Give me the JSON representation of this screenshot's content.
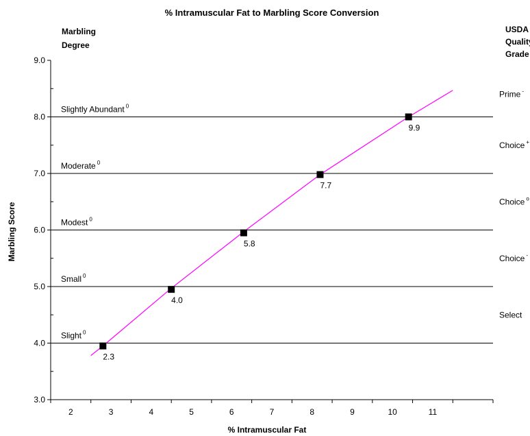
{
  "chart_data": {
    "type": "line",
    "title": "% Intramuscular Fat to Marbling Score Conversion",
    "xlabel": "% Intramuscular Fat",
    "ylabel": "Marbling Score",
    "left_header": [
      "Marbling",
      "Degree"
    ],
    "right_header": [
      "USDA",
      "Quality",
      "Grade"
    ],
    "xlim": [
      1,
      12
    ],
    "ylim": [
      3.0,
      9.0
    ],
    "x_ticks": [
      "2",
      "3",
      "4",
      "5",
      "6",
      "7",
      "8",
      "9",
      "10",
      "11"
    ],
    "y_ticks": [
      "3.0",
      "4.0",
      "5.0",
      "6.0",
      "7.0",
      "8.0",
      "9.0"
    ],
    "marbling_degrees": [
      {
        "label": "Slight",
        "sup": "0",
        "y": 4.0
      },
      {
        "label": "Small",
        "sup": "0",
        "y": 5.0
      },
      {
        "label": "Modest",
        "sup": "0",
        "y": 6.0
      },
      {
        "label": "Moderate",
        "sup": "0",
        "y": 7.0
      },
      {
        "label": "Slightly Abundant",
        "sup": "0",
        "y": 8.0
      }
    ],
    "quality_grades": [
      {
        "label": "Select",
        "sup": "",
        "y": 4.5
      },
      {
        "label": "Choice",
        "sup": "-",
        "y": 5.5
      },
      {
        "label": "Choice",
        "sup": "o",
        "y": 6.5
      },
      {
        "label": "Choice",
        "sup": "+",
        "y": 7.5
      },
      {
        "label": "Prime",
        "sup": "-",
        "y": 8.4
      }
    ],
    "curve": {
      "color": "#ff00ff",
      "x": [
        2.0,
        2.3,
        4.0,
        5.8,
        7.7,
        9.9,
        11.0
      ],
      "y": [
        3.78,
        3.95,
        4.97,
        5.97,
        6.98,
        8.0,
        8.47
      ]
    },
    "points": {
      "x": [
        2.3,
        4.0,
        5.8,
        7.7,
        9.9
      ],
      "y": [
        3.95,
        4.95,
        5.95,
        6.98,
        8.0
      ],
      "labels": [
        "2.3",
        "4.0",
        "5.8",
        "7.7",
        "9.9"
      ],
      "color": "#000000"
    }
  }
}
